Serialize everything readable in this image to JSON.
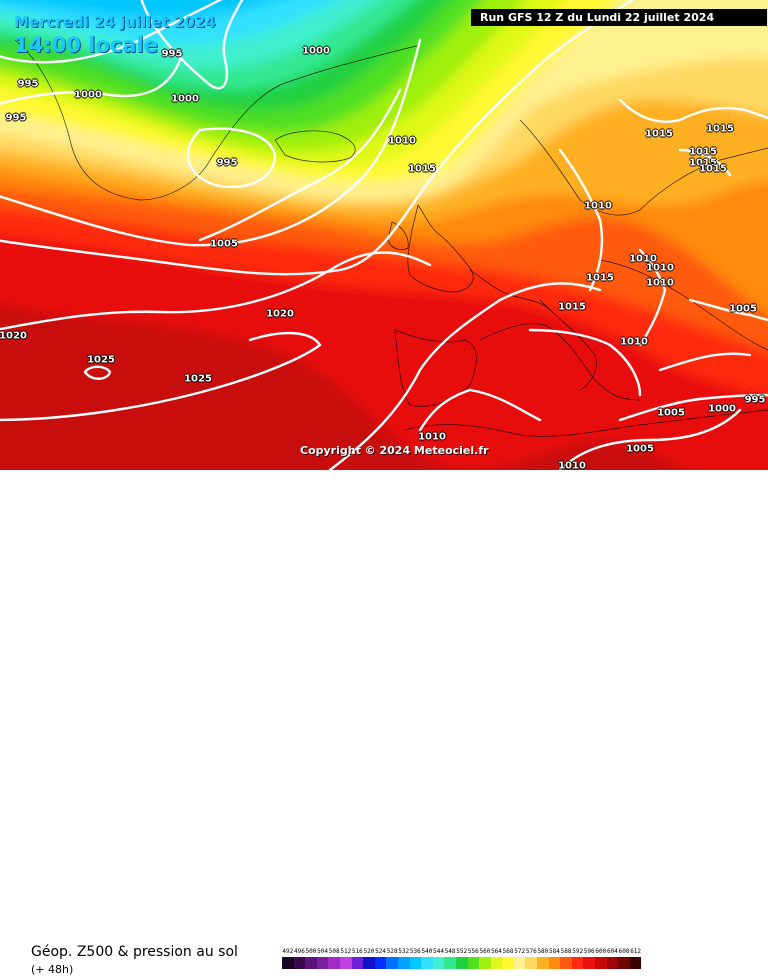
{
  "header": {
    "date": "Mercredi 24 juillet 2024",
    "time": "14:00 locale",
    "run": "Run GFS 12 Z du Lundi 22 juillet 2024"
  },
  "copyright": "Copyright © 2024 Meteociel.fr",
  "legend": {
    "title": "Géop. Z500 & pression au sol",
    "subtitle": "(+ 48h)",
    "scale": [
      {
        "label": "492",
        "color": "#1a0624"
      },
      {
        "label": "496",
        "color": "#3a0a4e"
      },
      {
        "label": "500",
        "color": "#5a137a"
      },
      {
        "label": "504",
        "color": "#7a1fa0"
      },
      {
        "label": "508",
        "color": "#a02cc6"
      },
      {
        "label": "512",
        "color": "#c040e0"
      },
      {
        "label": "516",
        "color": "#7020d8"
      },
      {
        "label": "520",
        "color": "#1010c8"
      },
      {
        "label": "524",
        "color": "#0030ff"
      },
      {
        "label": "528",
        "color": "#0070ff"
      },
      {
        "label": "532",
        "color": "#00a0ff"
      },
      {
        "label": "536",
        "color": "#00c8ff"
      },
      {
        "label": "540",
        "color": "#30e0ff"
      },
      {
        "label": "544",
        "color": "#40f0d0"
      },
      {
        "label": "548",
        "color": "#30e890"
      },
      {
        "label": "552",
        "color": "#20d040"
      },
      {
        "label": "556",
        "color": "#50e020"
      },
      {
        "label": "560",
        "color": "#a0f010"
      },
      {
        "label": "564",
        "color": "#e0f818"
      },
      {
        "label": "568",
        "color": "#fff830"
      },
      {
        "label": "572",
        "color": "#fff090"
      },
      {
        "label": "576",
        "color": "#ffd860"
      },
      {
        "label": "580",
        "color": "#ffb020"
      },
      {
        "label": "584",
        "color": "#ff8a10"
      },
      {
        "label": "588",
        "color": "#ff5a10"
      },
      {
        "label": "592",
        "color": "#ff2a10"
      },
      {
        "label": "596",
        "color": "#e81010"
      },
      {
        "label": "600",
        "color": "#c80808"
      },
      {
        "label": "604",
        "color": "#a00404"
      },
      {
        "label": "608",
        "color": "#700202"
      },
      {
        "label": "612",
        "color": "#3a0000"
      }
    ]
  },
  "isobars": [
    {
      "label": "995",
      "pos": "greenland-top"
    },
    {
      "label": "995",
      "pos": "west-1"
    },
    {
      "label": "995",
      "pos": "west-2"
    },
    {
      "label": "1000",
      "pos": "greenland-top-2"
    },
    {
      "label": "1000",
      "pos": "greenland-west"
    },
    {
      "label": "1000",
      "pos": "greenland-mid"
    },
    {
      "label": "995",
      "pos": "low-center"
    },
    {
      "label": "1010",
      "pos": "iceland-east"
    },
    {
      "label": "1015",
      "pos": "faroes"
    },
    {
      "label": "1005",
      "pos": "atlantic-north"
    },
    {
      "label": "1020",
      "pos": "atlantic-mid"
    },
    {
      "label": "1020",
      "pos": "atlantic-west"
    },
    {
      "label": "1025",
      "pos": "azores-small"
    },
    {
      "label": "1025",
      "pos": "azores"
    },
    {
      "label": "1015",
      "pos": "finland"
    },
    {
      "label": "1015",
      "pos": "russia-1"
    },
    {
      "label": "1015",
      "pos": "russia-2"
    },
    {
      "label": "1015",
      "pos": "russia-3"
    },
    {
      "label": "1015",
      "pos": "russia-4"
    },
    {
      "label": "1010",
      "pos": "baltic"
    },
    {
      "label": "1010",
      "pos": "belarus-1"
    },
    {
      "label": "1010",
      "pos": "belarus-2"
    },
    {
      "label": "1010",
      "pos": "ukraine"
    },
    {
      "label": "1015",
      "pos": "poland"
    },
    {
      "label": "1015",
      "pos": "alps"
    },
    {
      "label": "1010",
      "pos": "balkans"
    },
    {
      "label": "1005",
      "pos": "caspian"
    },
    {
      "label": "1005",
      "pos": "greece"
    },
    {
      "label": "1000",
      "pos": "turkey"
    },
    {
      "label": "995",
      "pos": "east-edge"
    },
    {
      "label": "1005",
      "pos": "libya"
    },
    {
      "label": "1010",
      "pos": "algeria"
    },
    {
      "label": "1010",
      "pos": "sahara"
    }
  ]
}
